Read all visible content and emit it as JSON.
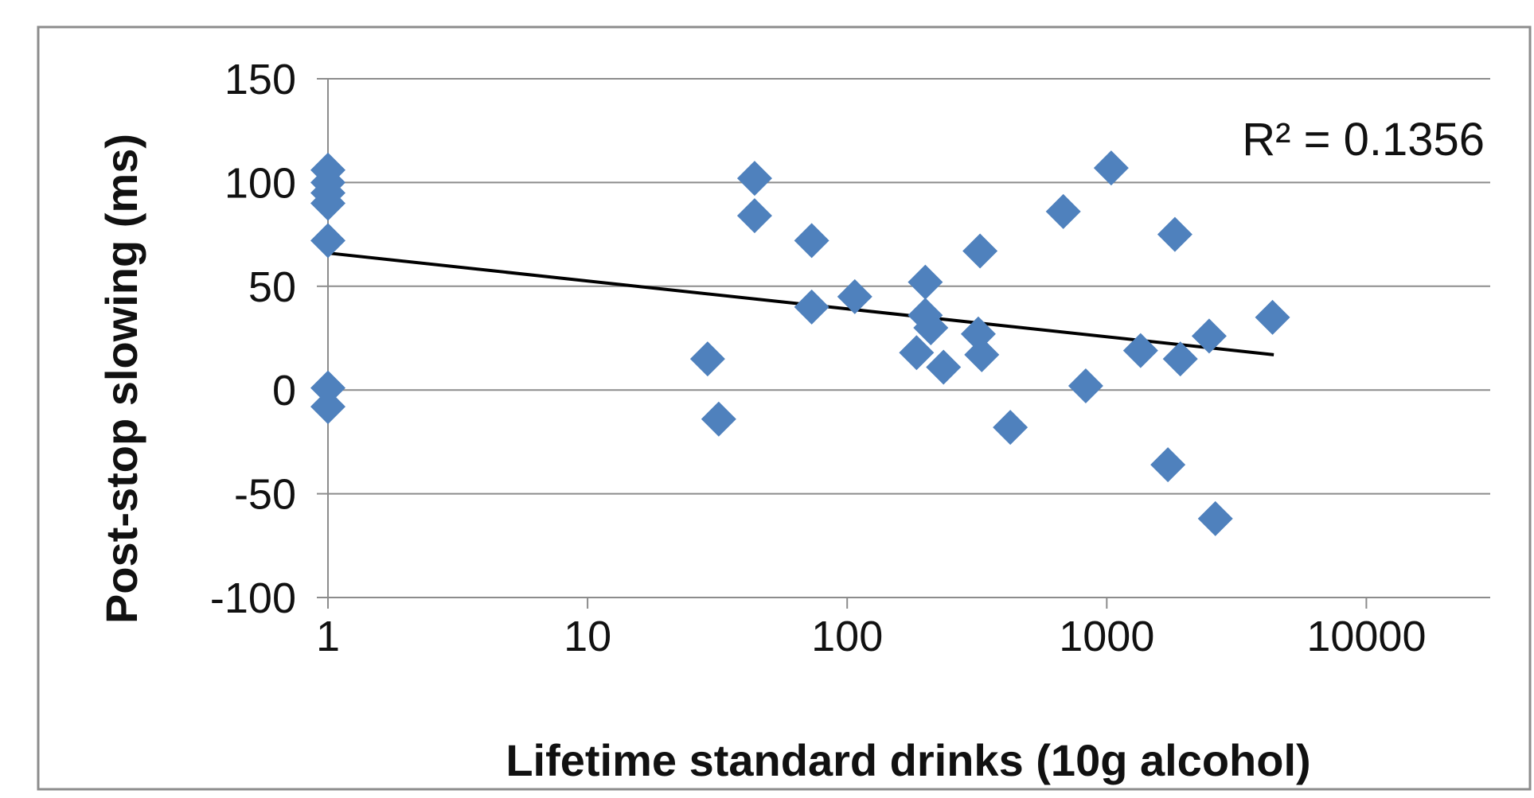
{
  "chart_data": {
    "type": "scatter",
    "title": "",
    "xlabel": "Lifetime standard drinks (10g alcohol)",
    "ylabel": "Post-stop slowing (ms)",
    "x_scale": "log",
    "xlim": [
      1,
      30000
    ],
    "ylim": [
      -100,
      150
    ],
    "x_ticks": [
      "1",
      "10",
      "100",
      "1000",
      "10000"
    ],
    "y_ticks": [
      "150",
      "100",
      "50",
      "0",
      "-50",
      "-100"
    ],
    "grid": "horizontal",
    "marker": "diamond",
    "marker_color": "#4F81BD",
    "annotation": "R² = 0.1356",
    "points": [
      {
        "x": 1,
        "y": 106
      },
      {
        "x": 1,
        "y": 100
      },
      {
        "x": 1,
        "y": 95
      },
      {
        "x": 1,
        "y": 90
      },
      {
        "x": 1,
        "y": 72
      },
      {
        "x": 1,
        "y": 1
      },
      {
        "x": 1,
        "y": -8
      },
      {
        "x": 29,
        "y": 15
      },
      {
        "x": 32,
        "y": -14
      },
      {
        "x": 44,
        "y": 102
      },
      {
        "x": 44,
        "y": 84
      },
      {
        "x": 73,
        "y": 72
      },
      {
        "x": 73,
        "y": 40
      },
      {
        "x": 107,
        "y": 45
      },
      {
        "x": 185,
        "y": 18
      },
      {
        "x": 200,
        "y": 52
      },
      {
        "x": 200,
        "y": 36
      },
      {
        "x": 210,
        "y": 30
      },
      {
        "x": 235,
        "y": 11
      },
      {
        "x": 320,
        "y": 27
      },
      {
        "x": 325,
        "y": 67
      },
      {
        "x": 330,
        "y": 17
      },
      {
        "x": 425,
        "y": -18
      },
      {
        "x": 680,
        "y": 86
      },
      {
        "x": 830,
        "y": 2
      },
      {
        "x": 1040,
        "y": 107
      },
      {
        "x": 1350,
        "y": 19
      },
      {
        "x": 1720,
        "y": -36
      },
      {
        "x": 1830,
        "y": 75
      },
      {
        "x": 1920,
        "y": 15
      },
      {
        "x": 2480,
        "y": 26
      },
      {
        "x": 2620,
        "y": -62
      },
      {
        "x": 4350,
        "y": 35
      }
    ],
    "trendline": {
      "type": "logarithmic",
      "color": "#000000",
      "from": {
        "x": 1,
        "y": 66
      },
      "to": {
        "x": 4400,
        "y": 17
      }
    }
  }
}
